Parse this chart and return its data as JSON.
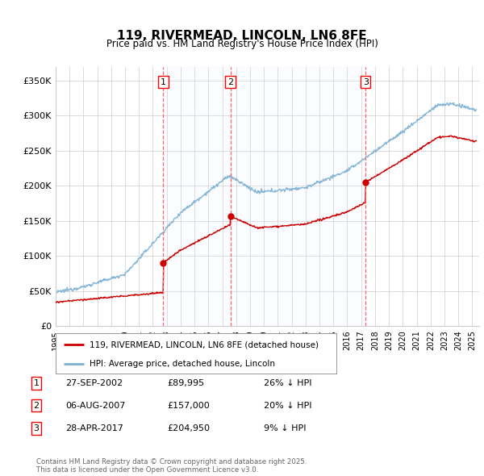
{
  "title": "119, RIVERMEAD, LINCOLN, LN6 8FE",
  "subtitle": "Price paid vs. HM Land Registry's House Price Index (HPI)",
  "ylabel_ticks": [
    "£0",
    "£50K",
    "£100K",
    "£150K",
    "£200K",
    "£250K",
    "£300K",
    "£350K"
  ],
  "ytick_values": [
    0,
    50000,
    100000,
    150000,
    200000,
    250000,
    300000,
    350000
  ],
  "ylim": [
    0,
    370000
  ],
  "xlim_start": 1995.0,
  "xlim_end": 2025.5,
  "sale_dates": [
    2002.74,
    2007.59,
    2017.32
  ],
  "sale_prices": [
    89995,
    157000,
    204950
  ],
  "sale_labels": [
    "1",
    "2",
    "3"
  ],
  "sale_color": "#cc0000",
  "hpi_color": "#7ab0d4",
  "legend_label_red": "119, RIVERMEAD, LINCOLN, LN6 8FE (detached house)",
  "legend_label_blue": "HPI: Average price, detached house, Lincoln",
  "table_rows": [
    {
      "num": "1",
      "date": "27-SEP-2002",
      "price": "£89,995",
      "pct": "26% ↓ HPI"
    },
    {
      "num": "2",
      "date": "06-AUG-2007",
      "price": "£157,000",
      "pct": "20% ↓ HPI"
    },
    {
      "num": "3",
      "date": "28-APR-2017",
      "price": "£204,950",
      "pct": "9% ↓ HPI"
    }
  ],
  "footer": "Contains HM Land Registry data © Crown copyright and database right 2025.\nThis data is licensed under the Open Government Licence v3.0.",
  "bg_color": "#ffffff",
  "plot_bg_color": "#ffffff",
  "grid_color": "#cccccc",
  "dashed_line_color": "#ff6666",
  "span_color": "#ddeeff"
}
